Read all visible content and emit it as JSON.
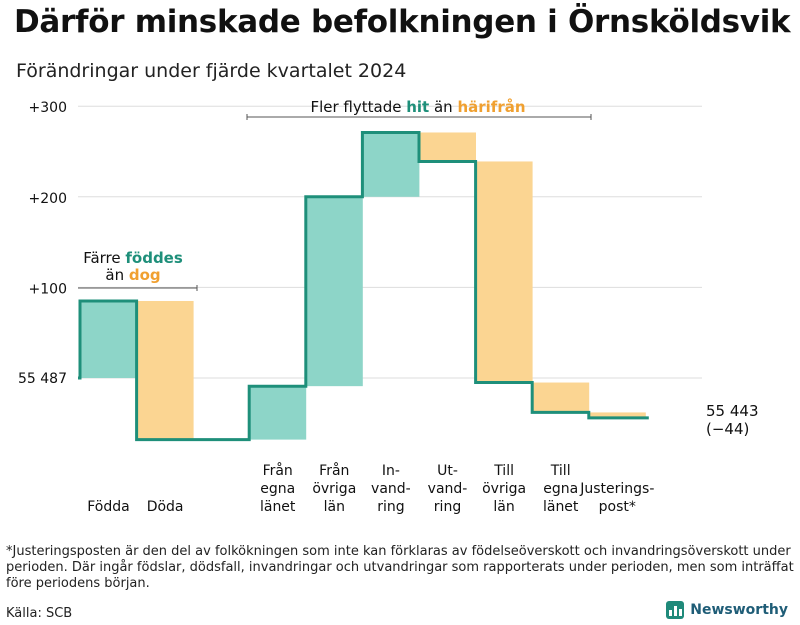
{
  "title": "Därför minskade befolkningen i Örnsköldsvik",
  "subtitle": "Förändringar under fjärde kvartalet 2024",
  "chart_data": {
    "type": "waterfall",
    "title": "Därför minskade befolkningen i Örnsköldsvik",
    "subtitle": "Förändringar under fjärde kvartalet 2024",
    "start_value": 55487,
    "start_label": "55 487",
    "end_value": 55443,
    "end_label": "55 443",
    "end_change_label": "(−44)",
    "y_range_relative": [
      -70,
      300
    ],
    "y_ticks": [
      {
        "value": 100,
        "label": "+100"
      },
      {
        "value": 200,
        "label": "+200"
      },
      {
        "value": 300,
        "label": "+300"
      }
    ],
    "steps": [
      {
        "label_lines": [
          "Födda"
        ],
        "from": 0,
        "to": 85,
        "kind": "positive"
      },
      {
        "label_lines": [
          "Döda"
        ],
        "from": 85,
        "to": -68,
        "kind": "negative"
      },
      {
        "label_lines": [
          "Från",
          "egna",
          "länet"
        ],
        "from": -68,
        "to": -9,
        "kind": "positive"
      },
      {
        "label_lines": [
          "Från",
          "övriga",
          "län"
        ],
        "from": -9,
        "to": 200,
        "kind": "positive"
      },
      {
        "label_lines": [
          "In-",
          "vand-",
          "ring"
        ],
        "from": 200,
        "to": 271,
        "kind": "positive"
      },
      {
        "label_lines": [
          "Ut-",
          "vand-",
          "ring"
        ],
        "from": 271,
        "to": 239,
        "kind": "negative"
      },
      {
        "label_lines": [
          "Till",
          "övriga",
          "län"
        ],
        "from": 239,
        "to": -5,
        "kind": "negative"
      },
      {
        "label_lines": [
          "Till",
          "egna",
          "länet"
        ],
        "from": -5,
        "to": -38,
        "kind": "negative"
      },
      {
        "label_lines": [
          "Justerings-",
          "post*"
        ],
        "from": -38,
        "to": -44,
        "kind": "negative"
      }
    ],
    "annotations": [
      {
        "id": "births",
        "parts": [
          {
            "text": "Färre ",
            "color": "#111111",
            "bold": false
          },
          {
            "text": "föddes",
            "color": "#1e8f7a",
            "bold": true
          }
        ],
        "line2_parts": [
          {
            "text": "än ",
            "color": "#111111",
            "bold": false
          },
          {
            "text": "dog",
            "color": "#f0a030",
            "bold": true
          }
        ]
      },
      {
        "id": "moves",
        "parts": [
          {
            "text": "Fler flyttade ",
            "color": "#111111",
            "bold": false
          },
          {
            "text": "hit",
            "color": "#1e8f7a",
            "bold": true
          },
          {
            "text": " än ",
            "color": "#111111",
            "bold": false
          },
          {
            "text": "härifrån",
            "color": "#f0a030",
            "bold": true
          }
        ]
      }
    ],
    "colors": {
      "positive": "#8dd5c8",
      "negative": "#fbd592",
      "line": "#1e8f7a",
      "grid": "#dddddd"
    }
  },
  "footnote": "*Justeringsposten är den del av folkökningen som inte kan förklaras av födelseöverskott och invandringsöverskott under perioden. Där ingår födslar, dödsfall, invandringar och utvandringar som rapporterats under perioden, men som inträffat före periodens början.",
  "source": "Källa: SCB",
  "brand": "Newsworthy"
}
